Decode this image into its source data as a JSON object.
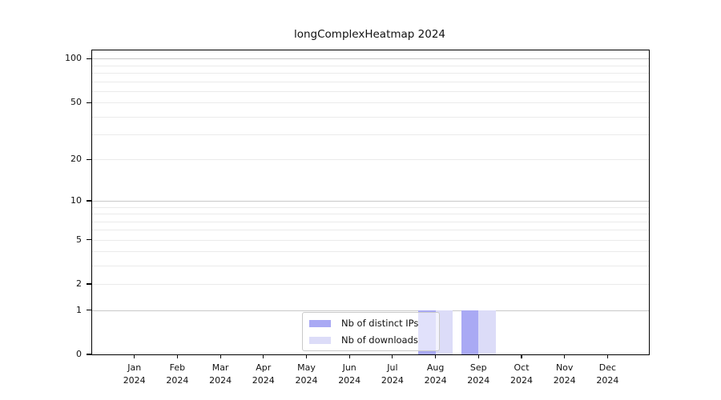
{
  "title": "longComplexHeatmap 2024",
  "chart_data": {
    "type": "bar",
    "title": "longComplexHeatmap 2024",
    "categories": [
      "Jan 2024",
      "Feb 2024",
      "Mar 2024",
      "Apr 2024",
      "May 2024",
      "Jun 2024",
      "Jul 2024",
      "Aug 2024",
      "Sep 2024",
      "Oct 2024",
      "Nov 2024",
      "Dec 2024"
    ],
    "series": [
      {
        "name": "Nb of distinct IPs",
        "color": "#a9a9f4",
        "values": [
          0,
          0,
          0,
          0,
          0,
          0,
          0,
          1,
          1,
          0,
          0,
          0
        ]
      },
      {
        "name": "Nb of downloads",
        "color": "#dcdcf8",
        "values": [
          0,
          0,
          0,
          0,
          0,
          0,
          0,
          1,
          1,
          0,
          0,
          0
        ]
      }
    ],
    "y_axis": {
      "scale": "log10(value+1)",
      "tick_values": [
        0,
        1,
        2,
        5,
        10,
        20,
        50,
        100
      ],
      "tick_labels": [
        "0",
        "1",
        "2",
        "5",
        "10",
        "20",
        "50",
        "100"
      ],
      "minor_gridlines": [
        2,
        3,
        4,
        5,
        6,
        7,
        8,
        9,
        20,
        30,
        40,
        50,
        60,
        70,
        80,
        90
      ],
      "major_gridlines": [
        1,
        10,
        100
      ],
      "ylim": [
        0,
        114
      ]
    },
    "x_axis": {
      "year_suffix": "2024"
    },
    "legend": {
      "position": "bottom-center",
      "entries": [
        "Nb of distinct IPs",
        "Nb of downloads"
      ]
    },
    "grid": "horizontal-only",
    "colors": {
      "grid_minor": "#ebebeb",
      "grid_major": "#c8c8c8",
      "axis": "#000000",
      "legend_border": "#c9c9c9"
    }
  }
}
